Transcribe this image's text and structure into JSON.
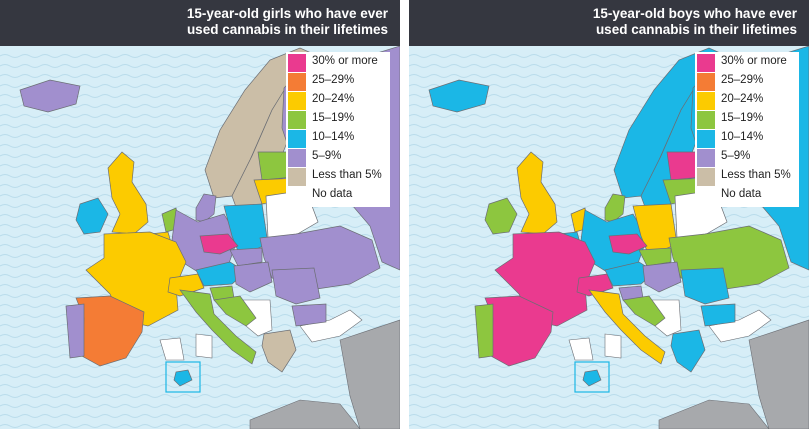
{
  "colors": {
    "sea": "#d7eef7",
    "wave": "#b9dceb",
    "nodata_land": "#ffffff",
    "outside_land": "#a7a9ac",
    "border": "#6b6e74",
    "header": "#353740"
  },
  "legend": [
    {
      "label": "30% or more",
      "color": "#ea3a8f"
    },
    {
      "label": "25–29%",
      "color": "#f47c35"
    },
    {
      "label": "20–24%",
      "color": "#fccb00"
    },
    {
      "label": "15–19%",
      "color": "#8dc63f"
    },
    {
      "label": "10–14%",
      "color": "#1bb7e6"
    },
    {
      "label": "5–9%",
      "color": "#a18fce"
    },
    {
      "label": "Less than 5%",
      "color": "#cbbea7"
    },
    {
      "label": "No data",
      "color": "#ffffff"
    }
  ],
  "maps": [
    {
      "id": "girls",
      "title_line1": "15-year-old girls who have ever",
      "title_line2": "used cannabis in their lifetimes",
      "regions": {
        "iceland": "5–9%",
        "ireland": "10–14%",
        "uk": "20–24%",
        "france": "20–24%",
        "spain": "25–29%",
        "portugal": "5–9%",
        "italy": "15–19%",
        "switzerland": "20–24%",
        "germany": "5–9%",
        "netherlands": "15–19%",
        "belgium": "20–24%",
        "denmark": "5–9%",
        "norway": "Less than 5%",
        "sweden": "Less than 5%",
        "finland": "5–9%",
        "poland": "10–14%",
        "czechia": "30% or more",
        "austria": "10–14%",
        "slovakia": "5–9%",
        "hungary": "5–9%",
        "slovenia": "15–19%",
        "croatia": "15–19%",
        "romania": "5–9%",
        "bulgaria": "5–9%",
        "greece": "Less than 5%",
        "baltic": "15–19%",
        "lithuania": "20–24%",
        "ukraine": "5–9%",
        "russia": "5–9%",
        "belarus": "No data",
        "malta": "10–14%"
      }
    },
    {
      "id": "boys",
      "title_line1": "15-year-old boys who have ever",
      "title_line2": "used cannabis in their lifetimes",
      "regions": {
        "iceland": "10–14%",
        "ireland": "15–19%",
        "uk": "20–24%",
        "france": "30% or more",
        "spain": "30% or more",
        "portugal": "15–19%",
        "italy": "20–24%",
        "switzerland": "30% or more",
        "germany": "10–14%",
        "netherlands": "20–24%",
        "belgium": "10–14%",
        "denmark": "15–19%",
        "norway": "10–14%",
        "sweden": "10–14%",
        "finland": "10–14%",
        "poland": "20–24%",
        "czechia": "30% or more",
        "austria": "10–14%",
        "slovakia": "15–19%",
        "hungary": "5–9%",
        "slovenia": "5–9%",
        "croatia": "15–19%",
        "romania": "10–14%",
        "bulgaria": "10–14%",
        "greece": "10–14%",
        "baltic": "30% or more",
        "lithuania": "15–19%",
        "ukraine": "15–19%",
        "russia": "10–14%",
        "belarus": "No data",
        "malta": "10–14%"
      }
    }
  ]
}
